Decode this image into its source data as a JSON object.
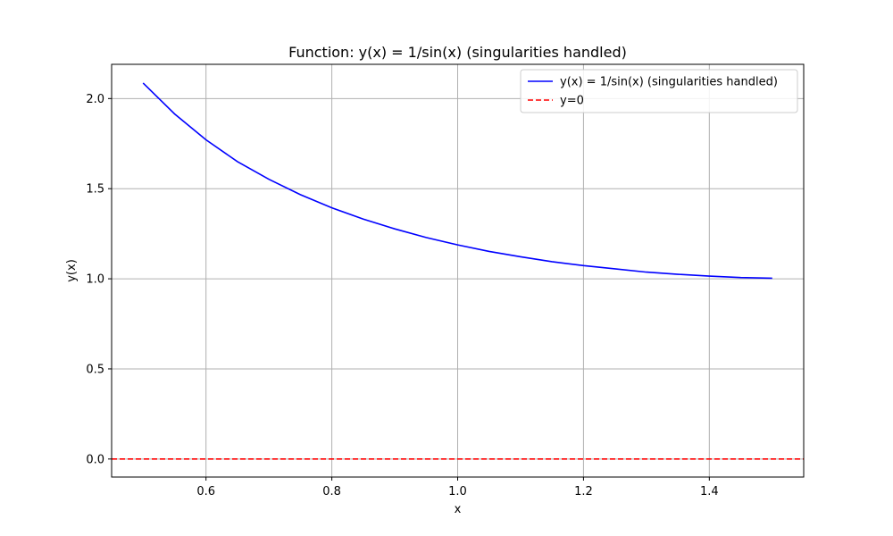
{
  "chart_data": {
    "type": "line",
    "title": "Function: y(x) = 1/sin(x) (singularities handled)",
    "xlabel": "x",
    "ylabel": "y(x)",
    "xlim": [
      0.45,
      1.55
    ],
    "ylim": [
      -0.1,
      2.19
    ],
    "xticks": [
      0.6,
      0.8,
      1.0,
      1.2,
      1.4
    ],
    "xtick_labels": [
      "0.6",
      "0.8",
      "1.0",
      "1.2",
      "1.4"
    ],
    "yticks": [
      0.0,
      0.5,
      1.0,
      1.5,
      2.0
    ],
    "ytick_labels": [
      "0.0",
      "0.5",
      "1.0",
      "1.5",
      "2.0"
    ],
    "grid": true,
    "legend_position": "upper-right",
    "series": [
      {
        "name": "y(x) = 1/sin(x) (singularities handled)",
        "color": "#0000ff",
        "style": "solid",
        "x": [
          0.5,
          0.55,
          0.6,
          0.65,
          0.7,
          0.75,
          0.8,
          0.85,
          0.9,
          0.95,
          1.0,
          1.05,
          1.1,
          1.15,
          1.2,
          1.25,
          1.3,
          1.35,
          1.4,
          1.45,
          1.5
        ],
        "y": [
          2.086,
          1.915,
          1.771,
          1.65,
          1.552,
          1.467,
          1.394,
          1.331,
          1.277,
          1.229,
          1.188,
          1.152,
          1.122,
          1.095,
          1.073,
          1.055,
          1.037,
          1.025,
          1.015,
          1.007,
          1.003
        ]
      },
      {
        "name": "y=0",
        "color": "#ff0000",
        "style": "dashed",
        "x": [
          0.45,
          1.55
        ],
        "y": [
          0,
          0
        ]
      }
    ]
  }
}
